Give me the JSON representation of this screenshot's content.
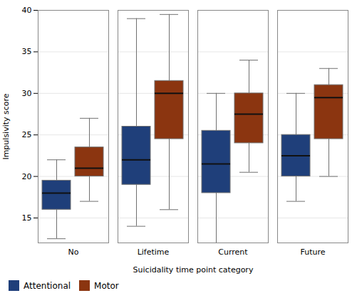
{
  "chart_data": {
    "type": "box",
    "xlabel": "Suicidality time point category",
    "ylabel": "Impulsivity score",
    "categories": [
      "No",
      "Lifetime",
      "Current",
      "Future"
    ],
    "series": [
      {
        "name": "Attentional",
        "color": "#1f3f7a",
        "values": [
          {
            "whislo": 12.5,
            "q1": 16,
            "med": 18,
            "q3": 19.5,
            "whishi": 22
          },
          {
            "whislo": 14,
            "q1": 19,
            "med": 22,
            "q3": 26,
            "whishi": 39
          },
          {
            "whislo": 12,
            "q1": 18,
            "med": 21.5,
            "q3": 25.5,
            "whishi": 30
          },
          {
            "whislo": 17,
            "q1": 20,
            "med": 22.5,
            "q3": 25,
            "whishi": 30
          }
        ]
      },
      {
        "name": "Motor",
        "color": "#8b3510",
        "values": [
          {
            "whislo": 17,
            "q1": 20,
            "med": 21,
            "q3": 23.5,
            "whishi": 27
          },
          {
            "whislo": 16,
            "q1": 24.5,
            "med": 30,
            "q3": 31.5,
            "whishi": 39.5
          },
          {
            "whislo": 20.5,
            "q1": 24,
            "med": 27.5,
            "q3": 30,
            "whishi": 34
          },
          {
            "whislo": 20,
            "q1": 24.5,
            "med": 29.5,
            "q3": 31,
            "whishi": 33
          }
        ]
      }
    ],
    "ylim": [
      12,
      40
    ],
    "yticks": [
      15,
      20,
      25,
      30,
      35,
      40
    ],
    "grid": true,
    "legend": "bottom"
  }
}
